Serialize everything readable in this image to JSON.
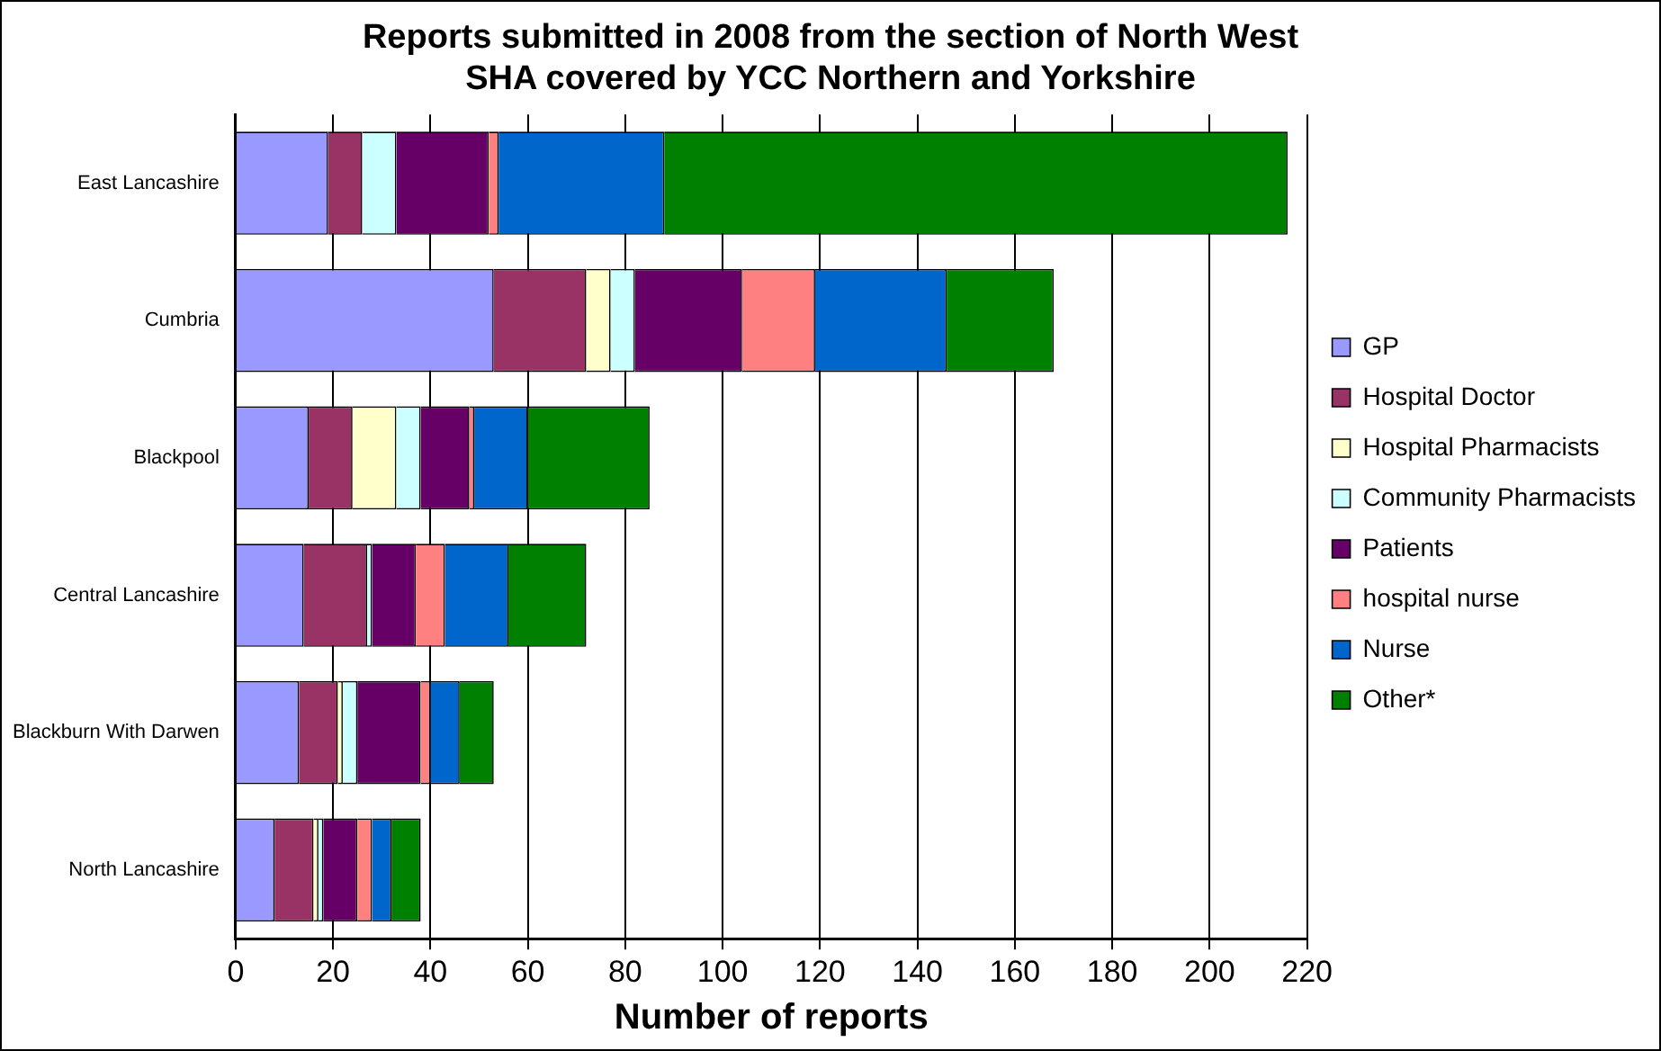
{
  "chart_data": {
    "type": "bar",
    "orientation": "horizontal",
    "stacked": true,
    "title": "Reports submitted in 2008 from the section of North West SHA covered by YCC Northern and Yorkshire",
    "xlabel": "Number of reports",
    "categories": [
      "East Lancashire",
      "Cumbria",
      "Blackpool",
      "Central Lancashire",
      "Blackburn With Darwen",
      "North Lancashire"
    ],
    "series": [
      {
        "name": "GP",
        "color": "#9999ff",
        "values": [
          19,
          53,
          15,
          14,
          13,
          8
        ]
      },
      {
        "name": "Hospital Doctor",
        "color": "#993366",
        "values": [
          7,
          19,
          9,
          13,
          8,
          8
        ]
      },
      {
        "name": "Hospital Pharmacists",
        "color": "#ffffcc",
        "values": [
          0,
          5,
          9,
          0,
          1,
          1
        ]
      },
      {
        "name": "Community Pharmacists",
        "color": "#ccffff",
        "values": [
          7,
          5,
          5,
          1,
          3,
          1
        ]
      },
      {
        "name": "Patients",
        "color": "#660066",
        "values": [
          19,
          22,
          10,
          9,
          13,
          7
        ]
      },
      {
        "name": "hospital nurse",
        "color": "#ff8080",
        "values": [
          2,
          15,
          1,
          6,
          2,
          3
        ]
      },
      {
        "name": "Nurse",
        "color": "#0066cc",
        "values": [
          34,
          27,
          11,
          13,
          6,
          4
        ]
      },
      {
        "name": "Other*",
        "color": "#008000",
        "values": [
          128,
          22,
          25,
          16,
          7,
          6
        ]
      }
    ],
    "xlim": [
      0,
      220
    ],
    "xticks": [
      0,
      20,
      40,
      60,
      80,
      100,
      120,
      140,
      160,
      180,
      200,
      220
    ],
    "grid": "x",
    "legend": "right"
  }
}
